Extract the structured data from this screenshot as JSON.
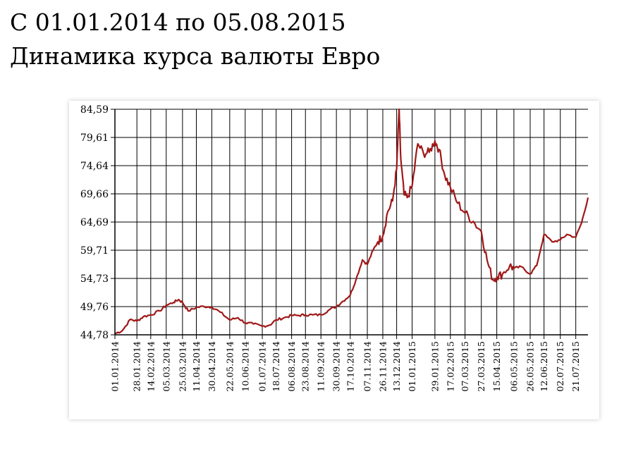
{
  "header": {
    "period": "С 01.01.2014 по 05.08.2015",
    "title": "Динамика курса валюты Евро"
  },
  "chart_data": {
    "type": "line",
    "title": "Динамика курса валюты Евро",
    "subtitle": "С 01.01.2014 по 05.08.2015",
    "xlabel": "",
    "ylabel": "",
    "ylim": [
      44.78,
      84.59
    ],
    "y_ticks": [
      "44,78",
      "49,76",
      "54,73",
      "59,71",
      "64,69",
      "69,66",
      "74,64",
      "79,61",
      "84,59"
    ],
    "x_range": [
      "2014-01-01",
      "2015-08-05"
    ],
    "x_ticks": [
      "01.01.2014",
      "28.01.2014",
      "14.02.2014",
      "05.03.2014",
      "25.03.2014",
      "11.04.2014",
      "30.04.2014",
      "22.05.2014",
      "10.06.2014",
      "01.07.2014",
      "18.07.2014",
      "06.08.2014",
      "23.08.2014",
      "11.09.2014",
      "30.09.2014",
      "17.10.2014",
      "07.11.2014",
      "26.11.2014",
      "13.12.2014",
      "01.01.2015",
      "29.01.2015",
      "17.02.2015",
      "07.03.2015",
      "27.03.2015",
      "15.04.2015",
      "06.05.2015",
      "26.05.2015",
      "12.06.2015",
      "02.07.2015",
      "21.07.2015"
    ],
    "grid": true,
    "legend": "none",
    "series_color": "#a01818",
    "series": [
      {
        "x": [
          "2014-01-01",
          "2014-01-10",
          "2014-01-20",
          "2014-01-28",
          "2014-02-05",
          "2014-02-14",
          "2014-02-25",
          "2014-03-05",
          "2014-03-14",
          "2014-03-20",
          "2014-03-25",
          "2014-04-01",
          "2014-04-11",
          "2014-04-20",
          "2014-04-30",
          "2014-05-10",
          "2014-05-22",
          "2014-06-01",
          "2014-06-10",
          "2014-06-20",
          "2014-07-01",
          "2014-07-10",
          "2014-07-18",
          "2014-07-28",
          "2014-08-06",
          "2014-08-15",
          "2014-08-23",
          "2014-09-01",
          "2014-09-11",
          "2014-09-20",
          "2014-09-30",
          "2014-10-08",
          "2014-10-17",
          "2014-10-24",
          "2014-11-01",
          "2014-11-07",
          "2014-11-14",
          "2014-11-20",
          "2014-11-26",
          "2014-12-02",
          "2014-12-08",
          "2014-12-13",
          "2014-12-16",
          "2014-12-18",
          "2014-12-22",
          "2014-12-26",
          "2015-01-01",
          "2015-01-08",
          "2015-01-15",
          "2015-01-22",
          "2015-01-29",
          "2015-02-03",
          "2015-02-10",
          "2015-02-17",
          "2015-02-26",
          "2015-03-07",
          "2015-03-17",
          "2015-03-27",
          "2015-04-03",
          "2015-04-10",
          "2015-04-15",
          "2015-04-22",
          "2015-05-01",
          "2015-05-06",
          "2015-05-15",
          "2015-05-26",
          "2015-06-03",
          "2015-06-12",
          "2015-06-22",
          "2015-07-02",
          "2015-07-10",
          "2015-07-21",
          "2015-07-28",
          "2015-08-05"
        ],
        "values": [
          45.0,
          45.5,
          47.5,
          47.2,
          48.0,
          48.3,
          49.0,
          50.0,
          50.5,
          51.0,
          50.5,
          49.0,
          49.6,
          49.8,
          49.7,
          48.8,
          47.4,
          47.8,
          46.9,
          46.7,
          46.3,
          46.5,
          47.4,
          47.8,
          48.2,
          48.2,
          48.3,
          48.3,
          48.3,
          49.1,
          49.8,
          50.7,
          51.8,
          54.5,
          58.0,
          57.2,
          59.7,
          61.2,
          62.3,
          66.5,
          68.4,
          74.0,
          84.59,
          76.0,
          69.5,
          69.0,
          71.0,
          78.5,
          76.8,
          77.0,
          79.0,
          77.5,
          73.0,
          70.8,
          68.0,
          66.3,
          64.8,
          63.0,
          58.0,
          54.5,
          55.0,
          55.5,
          57.0,
          56.5,
          56.8,
          55.5,
          57.0,
          62.5,
          61.2,
          61.5,
          62.5,
          62.0,
          64.5,
          69.0
        ]
      }
    ]
  }
}
